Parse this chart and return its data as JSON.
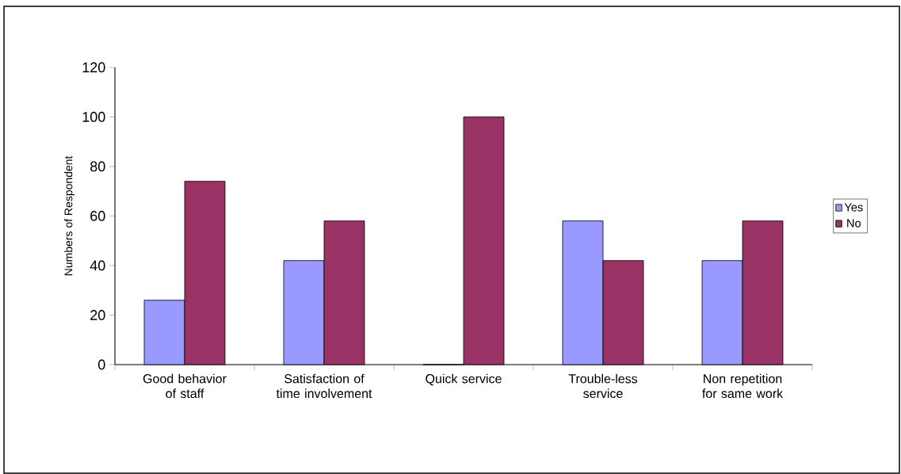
{
  "chart_data": {
    "type": "bar",
    "ylabel": "Numbers of Respondent",
    "categories": [
      "Good behavior of staff",
      "Satisfaction of time involvement",
      "Quick service",
      "Trouble-less service",
      "Non repetition for same work"
    ],
    "series": [
      {
        "name": "Yes",
        "color": "#9999ff",
        "values": [
          26,
          42,
          0,
          58,
          42
        ]
      },
      {
        "name": "No",
        "color": "#993366",
        "values": [
          74,
          58,
          100,
          42,
          58
        ]
      }
    ],
    "ylim": [
      0,
      120
    ],
    "yticks": [
      0,
      20,
      40,
      60,
      80,
      100,
      120
    ],
    "grid": false,
    "legend": "right"
  }
}
